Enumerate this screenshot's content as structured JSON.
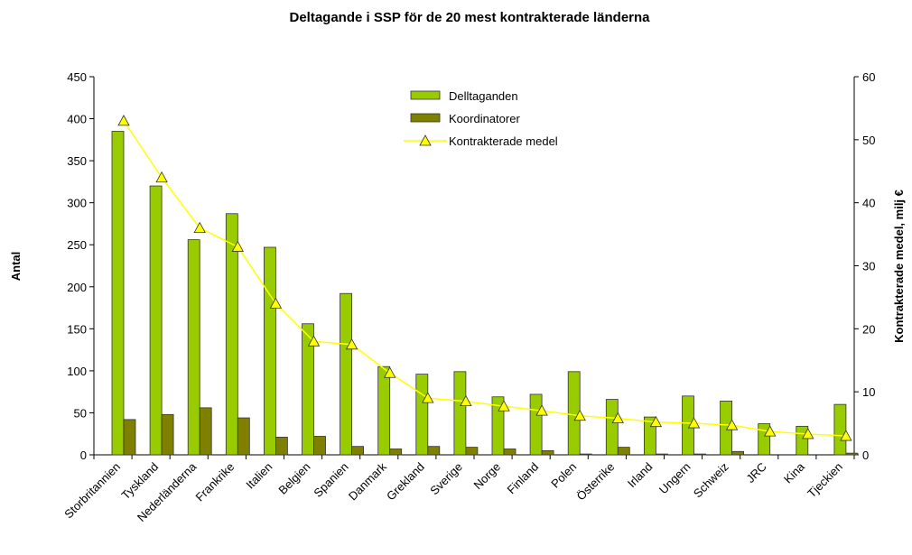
{
  "chart_data": {
    "type": "bar-line",
    "title": "Deltagande i SSP för de 20 mest kontrakterade länderna",
    "y_label": "Antal",
    "y2_label": "Kontrakterade medel, milj €",
    "categories": [
      "Storbritannien",
      "Tyskland",
      "Nederländerna",
      "Frankrike",
      "Italien",
      "Belgien",
      "Spanien",
      "Danmark",
      "Grekland",
      "Sverige",
      "Norge",
      "Finland",
      "Polen",
      "Österrike",
      "Irland",
      "Ungern",
      "Schweiz",
      "JRC",
      "Kina",
      "Tjeckien"
    ],
    "series": [
      {
        "name": "Delltaganden",
        "color": "#99cc00",
        "type": "bar",
        "values": [
          385,
          320,
          256,
          287,
          247,
          156,
          192,
          105,
          96,
          99,
          69,
          72,
          99,
          66,
          45,
          70,
          64,
          37,
          34,
          60
        ]
      },
      {
        "name": "Koordinatorer",
        "color": "#808000",
        "type": "bar",
        "values": [
          42,
          48,
          56,
          44,
          21,
          22,
          10,
          7,
          10,
          9,
          7,
          5,
          1,
          9,
          1,
          1,
          4,
          0,
          0,
          2
        ]
      },
      {
        "name": "Kontrakterade medel",
        "color": "#ffff00",
        "type": "line",
        "axis": "y2",
        "values": [
          53,
          44,
          36,
          33,
          24,
          18,
          17.5,
          13,
          9,
          8.5,
          7.7,
          7,
          6.2,
          5.8,
          5.2,
          5,
          4.7,
          3.7,
          3.3,
          3
        ]
      }
    ],
    "ylim": [
      0,
      450
    ],
    "yticks": [
      0,
      50,
      100,
      150,
      200,
      250,
      300,
      350,
      400,
      450
    ],
    "y2lim": [
      0,
      60
    ],
    "y2ticks": [
      0,
      10,
      20,
      30,
      40,
      50,
      60
    ],
    "legend": "top"
  }
}
